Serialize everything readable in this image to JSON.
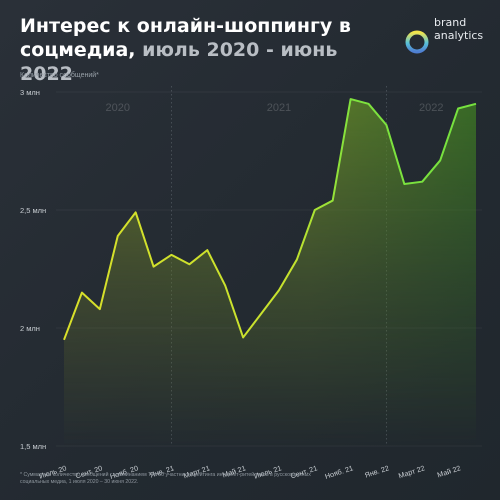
{
  "header": {
    "title_bold": "Интерес к онлайн-шоппингу в соцмедиа,",
    "title_light": "июль 2020 - июнь 2022"
  },
  "logo": {
    "line1": "brand",
    "line2": "analytics",
    "mark": "b",
    "colors": [
      "#f2e44a",
      "#58c3d8",
      "#4f7fd2"
    ]
  },
  "colors": {
    "line_start": "#d9e02a",
    "line_end": "#76e23f",
    "background": "#262c33"
  },
  "chart_data": {
    "type": "area",
    "ylabel": "Количество сообщений*",
    "ylim": [
      1.5,
      3.0
    ],
    "ytick_values": [
      1.5,
      2.0,
      2.5,
      3.0
    ],
    "ytick_labels": [
      "1,5 млн",
      "2 млн",
      "2,5 млн",
      "3 млн"
    ],
    "year_labels": [
      "2020",
      "2021",
      "2022"
    ],
    "grid": false,
    "legend": "none",
    "x": [
      "Июль 20",
      "Авг. 20",
      "Сент. 20",
      "Окт. 20",
      "Нояб. 20",
      "Дек. 20",
      "Янв. 21",
      "Февр. 21",
      "Март 21",
      "Апр. 21",
      "Май 21",
      "Июнь 21",
      "Июль 21",
      "Авг. 21",
      "Сент. 21",
      "Окт. 21",
      "Нояб. 21",
      "Дек. 21",
      "Янв. 22",
      "Февр. 22",
      "Март 22",
      "Апр. 22",
      "Май 22",
      "Июнь 22"
    ],
    "xtick_labels": [
      "Июль 20",
      "Сент. 20",
      "Нояб. 20",
      "Янв. 21",
      "Март 21",
      "Май 21",
      "Июль 21",
      "Сент. 21",
      "Нояб. 21",
      "Янв. 22",
      "Март 22",
      "Май 22"
    ],
    "series": [
      {
        "values": [
          1.95,
          2.15,
          2.08,
          2.39,
          2.49,
          2.26,
          2.31,
          2.27,
          2.33,
          2.18,
          1.96,
          2.06,
          2.16,
          2.29,
          2.5,
          2.54,
          2.97,
          2.95,
          2.86,
          2.61,
          2.62,
          2.71,
          2.93,
          2.95
        ]
      }
    ]
  },
  "footnote": "* Суммарное количество сообщений с упоминанием Топ-50 участников рейтинга интернет-ритейлеров в русскоязычных социальных медиа, 1 июля 2020 – 30 июня 2022."
}
